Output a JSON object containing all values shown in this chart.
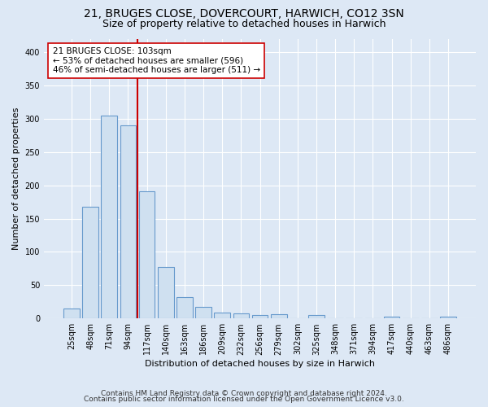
{
  "title1": "21, BRUGES CLOSE, DOVERCOURT, HARWICH, CO12 3SN",
  "title2": "Size of property relative to detached houses in Harwich",
  "xlabel": "Distribution of detached houses by size in Harwich",
  "ylabel": "Number of detached properties",
  "categories": [
    "25sqm",
    "48sqm",
    "71sqm",
    "94sqm",
    "117sqm",
    "140sqm",
    "163sqm",
    "186sqm",
    "209sqm",
    "232sqm",
    "256sqm",
    "279sqm",
    "302sqm",
    "325sqm",
    "348sqm",
    "371sqm",
    "394sqm",
    "417sqm",
    "440sqm",
    "463sqm",
    "486sqm"
  ],
  "values": [
    15,
    168,
    305,
    290,
    191,
    77,
    32,
    18,
    9,
    8,
    5,
    6,
    0,
    5,
    0,
    0,
    0,
    3,
    0,
    0,
    3
  ],
  "bar_color": "#cfe0f0",
  "bar_edge_color": "#6699cc",
  "vline_x": 3.5,
  "vline_color": "#cc0000",
  "annotation_line1": "21 BRUGES CLOSE: 103sqm",
  "annotation_line2": "← 53% of detached houses are smaller (596)",
  "annotation_line3": "46% of semi-detached houses are larger (511) →",
  "annotation_box_color": "white",
  "annotation_box_edge": "#cc0000",
  "footer1": "Contains HM Land Registry data © Crown copyright and database right 2024.",
  "footer2": "Contains public sector information licensed under the Open Government Licence v3.0.",
  "background_color": "#dde8f5",
  "plot_bg_color": "#dde8f5",
  "ylim": [
    0,
    420
  ],
  "yticks": [
    0,
    50,
    100,
    150,
    200,
    250,
    300,
    350,
    400
  ],
  "grid_color": "#ffffff",
  "title_fontsize": 10,
  "subtitle_fontsize": 9,
  "axis_label_fontsize": 8,
  "tick_fontsize": 7,
  "annotation_fontsize": 7.5,
  "footer_fontsize": 6.5
}
